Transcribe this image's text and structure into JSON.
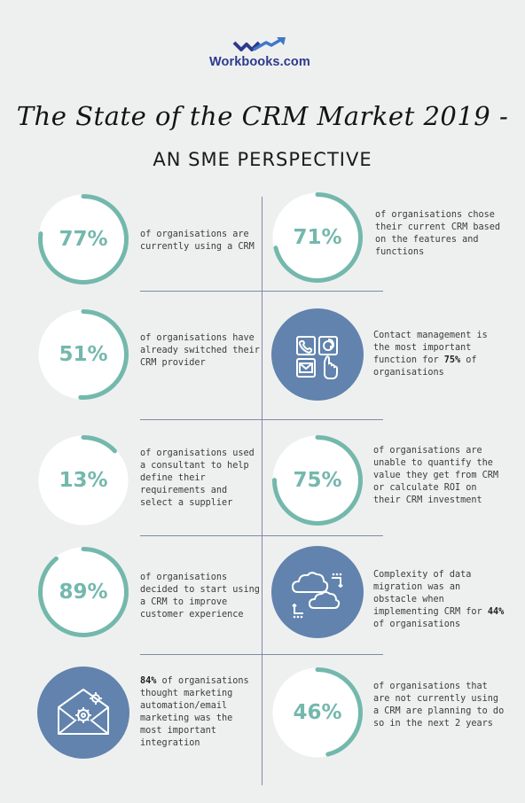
{
  "brand": {
    "name": "Workbooks.com"
  },
  "header": {
    "title": "The State of the CRM Market 2019 -",
    "subtitle": "AN SME PERSPECTIVE"
  },
  "colors": {
    "accent": "#74b8ad",
    "icon_bg": "#6183ad",
    "background": "#eef0f0",
    "divider": "#7f8aa8"
  },
  "stats": [
    {
      "id": "s77",
      "value": 77,
      "label": "77%",
      "text": "of organisations are currently using a CRM"
    },
    {
      "id": "s71",
      "value": 71,
      "label": "71%",
      "text": "of organisations chose their current CRM based on the features and functions"
    },
    {
      "id": "s51",
      "value": 51,
      "label": "51%",
      "text": "of organisations have already switched their CRM provider"
    },
    {
      "id": "contact",
      "icon": "contact-methods-icon",
      "text_pre": "Contact management is the most important function for ",
      "text_bold": "75%",
      "text_post": " of organisations"
    },
    {
      "id": "s13",
      "value": 13,
      "label": "13%",
      "text": "of organisations used a consultant to help define their requirements and select a supplier"
    },
    {
      "id": "s75",
      "value": 75,
      "label": "75%",
      "text": "of organisations are unable to quantify the value they get from CRM or calculate ROI on their CRM investment"
    },
    {
      "id": "s89",
      "value": 89,
      "label": "89%",
      "text": "of organisations decided to start using a CRM to improve customer experience"
    },
    {
      "id": "migration",
      "icon": "cloud-migration-icon",
      "text_pre": "Complexity of data migration was an obstacle when implementing CRM for ",
      "text_bold": "44%",
      "text_post": " of organisations"
    },
    {
      "id": "email",
      "icon": "email-automation-icon",
      "text_bold": "84%",
      "text_post": " of organisations thought marketing automation/email marketing was the most important integration"
    },
    {
      "id": "s46",
      "value": 46,
      "label": "46%",
      "text": "of organisations that are not currently using a CRM are planning to do so in the next 2 years"
    }
  ]
}
